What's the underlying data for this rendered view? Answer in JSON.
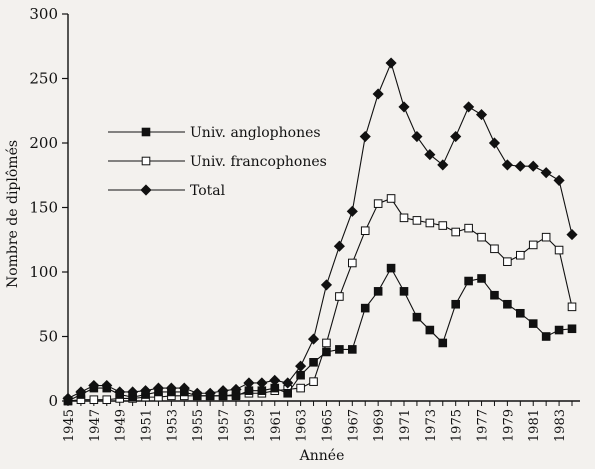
{
  "chart_data": {
    "type": "line",
    "xlabel": "Année",
    "ylabel": "Nombre de diplômés",
    "xlim": [
      1945,
      1984
    ],
    "ylim": [
      0,
      300
    ],
    "y_ticks": [
      "0",
      "50",
      "100",
      "150",
      "200",
      "250",
      "300"
    ],
    "x_ticks": [
      "1945",
      "1947",
      "1949",
      "1951",
      "1953",
      "1955",
      "1957",
      "1959",
      "1961",
      "1963",
      "1965",
      "1967",
      "1969",
      "1971",
      "1973",
      "1975",
      "1977",
      "1979",
      "1981",
      "1983"
    ],
    "legend_position": "upper-left",
    "x": [
      1945,
      1946,
      1947,
      1948,
      1949,
      1950,
      1951,
      1952,
      1953,
      1954,
      1955,
      1956,
      1957,
      1958,
      1959,
      1960,
      1961,
      1962,
      1963,
      1964,
      1965,
      1966,
      1967,
      1968,
      1969,
      1970,
      1971,
      1972,
      1973,
      1974,
      1975,
      1976,
      1977,
      1978,
      1979,
      1980,
      1981,
      1982,
      1983,
      1984
    ],
    "series": [
      {
        "name": "Univ. anglophones",
        "marker": "filled-square",
        "values": [
          0,
          5,
          10,
          10,
          5,
          3,
          5,
          7,
          7,
          7,
          4,
          4,
          4,
          4,
          8,
          8,
          10,
          6,
          20,
          30,
          38,
          40,
          40,
          72,
          85,
          103,
          85,
          65,
          55,
          45,
          75,
          93,
          95,
          82,
          75,
          68,
          60,
          50,
          55,
          56
        ]
      },
      {
        "name": "Univ. francophones",
        "marker": "open-square",
        "values": [
          0,
          1,
          1,
          1,
          2,
          2,
          3,
          3,
          4,
          4,
          4,
          4,
          4,
          5,
          6,
          6,
          8,
          9,
          10,
          15,
          45,
          81,
          107,
          132,
          153,
          157,
          142,
          140,
          138,
          136,
          131,
          134,
          127,
          118,
          108,
          113,
          121,
          127,
          117,
          73
        ]
      },
      {
        "name": "Total",
        "marker": "filled-diamond",
        "values": [
          2,
          7,
          12,
          12,
          7,
          7,
          8,
          10,
          10,
          10,
          6,
          6,
          8,
          9,
          14,
          14,
          16,
          14,
          27,
          48,
          90,
          120,
          147,
          205,
          238,
          262,
          228,
          205,
          191,
          183,
          205,
          228,
          222,
          200,
          183,
          182,
          182,
          177,
          171,
          129
        ]
      }
    ]
  }
}
